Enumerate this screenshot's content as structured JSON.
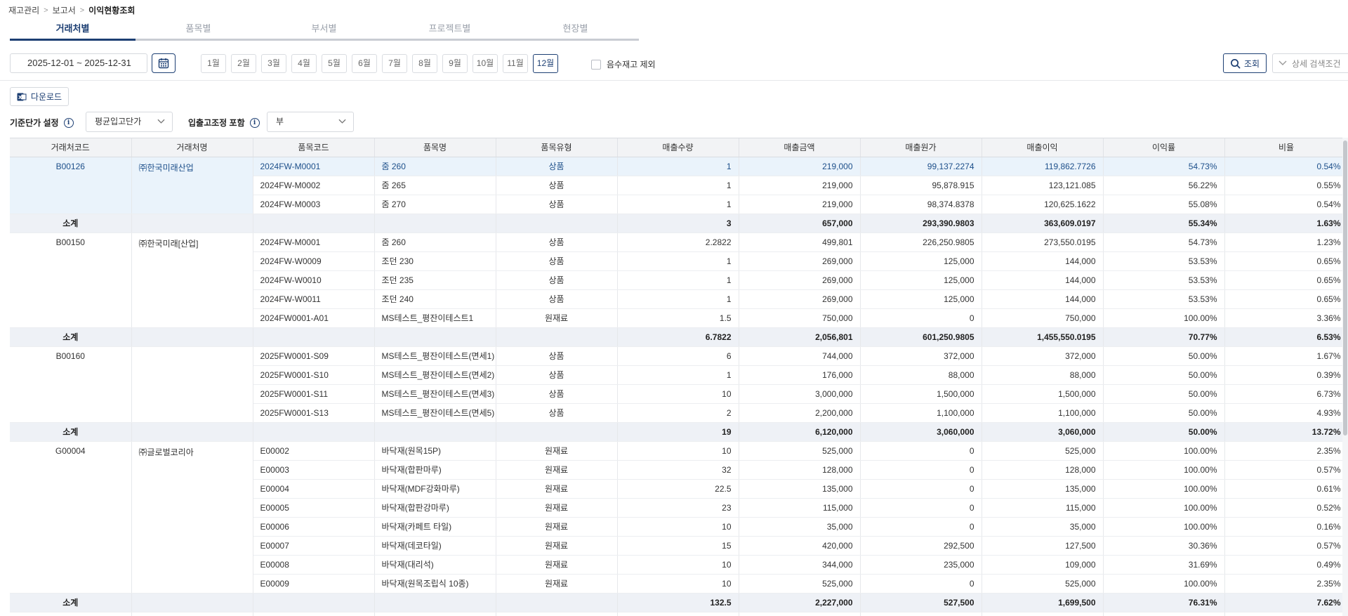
{
  "breadcrumb": {
    "items": [
      "재고관리",
      "보고서"
    ],
    "current": "이익현황조회"
  },
  "tabs": [
    {
      "label": "거래처별",
      "active": true
    },
    {
      "label": "품목별",
      "active": false
    },
    {
      "label": "부서별",
      "active": false
    },
    {
      "label": "프로젝트별",
      "active": false
    },
    {
      "label": "현장별",
      "active": false
    }
  ],
  "filter": {
    "date_range": "2025-12-01 ~ 2025-12-31",
    "months": [
      "1월",
      "2월",
      "3월",
      "4월",
      "5월",
      "6월",
      "7월",
      "8월",
      "9월",
      "10월",
      "11월",
      "12월"
    ],
    "active_month": "12월",
    "negative_stock_label": "음수재고 제외",
    "search_label": "조회",
    "detail_label": "상세 검색조건"
  },
  "toolbar": {
    "download_label": "다운로드"
  },
  "options": {
    "unit_price_label": "기준단가 설정",
    "unit_price_value": "평균입고단가",
    "adjust_label": "입출고조정 포함",
    "adjust_value": "부"
  },
  "table": {
    "headers": [
      "거래처코드",
      "거래처명",
      "품목코드",
      "품목명",
      "품목유형",
      "매출수량",
      "매출금액",
      "매출원가",
      "매출이익",
      "이익률",
      "비율"
    ],
    "groups": [
      {
        "code": "B00126",
        "name": "㈜한국미래산업",
        "rows": [
          [
            "2024FW-M0001",
            "줌 260",
            "상품",
            "1",
            "219,000",
            "99,137.2274",
            "119,862.7726",
            "54.73%",
            "0.54%"
          ],
          [
            "2024FW-M0002",
            "줌 265",
            "상품",
            "1",
            "219,000",
            "95,878.915",
            "123,121.085",
            "56.22%",
            "0.55%"
          ],
          [
            "2024FW-M0003",
            "줌 270",
            "상품",
            "1",
            "219,000",
            "98,374.8378",
            "120,625.1622",
            "55.08%",
            "0.54%"
          ]
        ],
        "subtotal": [
          "3",
          "657,000",
          "293,390.9803",
          "363,609.0197",
          "55.34%",
          "1.63%"
        ]
      },
      {
        "code": "B00150",
        "name": "㈜한국미래[산업]",
        "rows": [
          [
            "2024FW-M0001",
            "줌 260",
            "상품",
            "2.2822",
            "499,801",
            "226,250.9805",
            "273,550.0195",
            "54.73%",
            "1.23%"
          ],
          [
            "2024FW-W0009",
            "조던 230",
            "상품",
            "1",
            "269,000",
            "125,000",
            "144,000",
            "53.53%",
            "0.65%"
          ],
          [
            "2024FW-W0010",
            "조던 235",
            "상품",
            "1",
            "269,000",
            "125,000",
            "144,000",
            "53.53%",
            "0.65%"
          ],
          [
            "2024FW-W0011",
            "조던 240",
            "상품",
            "1",
            "269,000",
            "125,000",
            "144,000",
            "53.53%",
            "0.65%"
          ],
          [
            "2024FW0001-A01",
            "MS테스트_평잔이테스트1",
            "원재료",
            "1.5",
            "750,000",
            "0",
            "750,000",
            "100.00%",
            "3.36%"
          ]
        ],
        "subtotal": [
          "6.7822",
          "2,056,801",
          "601,250.9805",
          "1,455,550.0195",
          "70.77%",
          "6.53%"
        ]
      },
      {
        "code": "B00160",
        "name": "",
        "rows": [
          [
            "2025FW0001-S09",
            "MS테스트_평잔이테스트(면세1)",
            "상품",
            "6",
            "744,000",
            "372,000",
            "372,000",
            "50.00%",
            "1.67%"
          ],
          [
            "2025FW0001-S10",
            "MS테스트_평잔이테스트(면세2)",
            "상품",
            "1",
            "176,000",
            "88,000",
            "88,000",
            "50.00%",
            "0.39%"
          ],
          [
            "2025FW0001-S11",
            "MS테스트_평잔이테스트(면세3)",
            "상품",
            "10",
            "3,000,000",
            "1,500,000",
            "1,500,000",
            "50.00%",
            "6.73%"
          ],
          [
            "2025FW0001-S13",
            "MS테스트_평잔이테스트(면세5)",
            "상품",
            "2",
            "2,200,000",
            "1,100,000",
            "1,100,000",
            "50.00%",
            "4.93%"
          ]
        ],
        "subtotal": [
          "19",
          "6,120,000",
          "3,060,000",
          "3,060,000",
          "50.00%",
          "13.72%"
        ]
      },
      {
        "code": "G00004",
        "name": "㈜글로벌코리아",
        "rows": [
          [
            "E00002",
            "바닥재(원목15P)",
            "원재료",
            "10",
            "525,000",
            "0",
            "525,000",
            "100.00%",
            "2.35%"
          ],
          [
            "E00003",
            "바닥재(합판마루)",
            "원재료",
            "32",
            "128,000",
            "0",
            "128,000",
            "100.00%",
            "0.57%"
          ],
          [
            "E00004",
            "바닥재(MDF강화마루)",
            "원재료",
            "22.5",
            "135,000",
            "0",
            "135,000",
            "100.00%",
            "0.61%"
          ],
          [
            "E00005",
            "바닥재(합판강마루)",
            "원재료",
            "23",
            "115,000",
            "0",
            "115,000",
            "100.00%",
            "0.52%"
          ],
          [
            "E00006",
            "바닥재(카페트 타일)",
            "원재료",
            "10",
            "35,000",
            "0",
            "35,000",
            "100.00%",
            "0.16%"
          ],
          [
            "E00007",
            "바닥재(데코타일)",
            "원재료",
            "15",
            "420,000",
            "292,500",
            "127,500",
            "30.36%",
            "0.57%"
          ],
          [
            "E00008",
            "바닥재(대리석)",
            "원재료",
            "10",
            "344,000",
            "235,000",
            "109,000",
            "31.69%",
            "0.49%"
          ],
          [
            "E00009",
            "바닥재(원목조립식 10종)",
            "원재료",
            "10",
            "525,000",
            "0",
            "525,000",
            "100.00%",
            "2.35%"
          ]
        ],
        "subtotal": [
          "132.5",
          "2,227,000",
          "527,500",
          "1,699,500",
          "76.31%",
          "7.62%"
        ]
      }
    ],
    "subtotal_label": "소계"
  },
  "colors": {
    "accent": "#1d3f73",
    "selected_row_bg": "#eaf3fb",
    "subtotal_bg": "#eef1f6"
  }
}
